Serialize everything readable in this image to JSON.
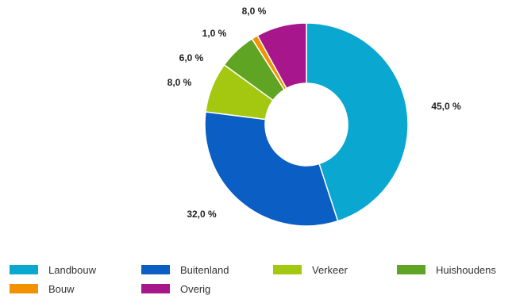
{
  "chart_data": {
    "type": "pie",
    "categories": [
      "Landbouw",
      "Buitenland",
      "Verkeer",
      "Huishoudens",
      "Bouw",
      "Overig"
    ],
    "values": [
      45,
      32,
      8,
      6,
      1,
      8
    ],
    "data_labels": [
      "45,0 %",
      "32,0 %",
      "8,0 %",
      "6,0 %",
      "1,0 %",
      "8,0 %"
    ],
    "colors": [
      "#0aa7d0",
      "#0b5ec4",
      "#a3c80f",
      "#5fa423",
      "#f29200",
      "#a7168a"
    ],
    "legend_position": "bottom",
    "donut": true
  }
}
